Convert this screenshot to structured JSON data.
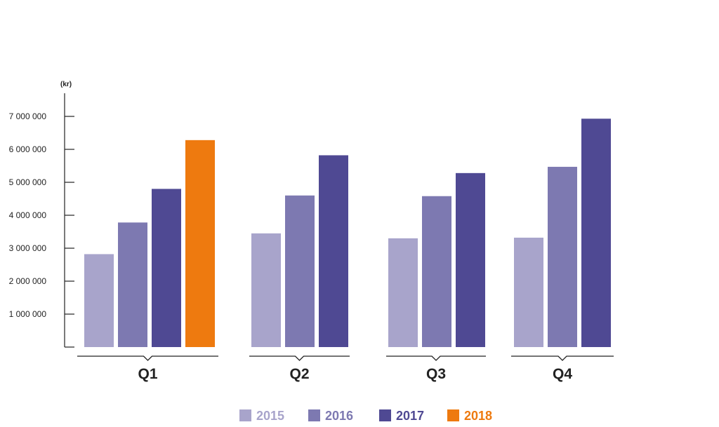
{
  "chart_data": {
    "type": "bar",
    "unit_label": "(kr)",
    "categories": [
      "Q1",
      "Q2",
      "Q3",
      "Q4"
    ],
    "series": [
      {
        "name": "2015",
        "color": "#a8a4cb",
        "values": [
          2820000,
          3450000,
          3300000,
          3320000
        ]
      },
      {
        "name": "2016",
        "color": "#7d79b1",
        "values": [
          3780000,
          4600000,
          4580000,
          5470000
        ]
      },
      {
        "name": "2017",
        "color": "#4f4993",
        "values": [
          4800000,
          5820000,
          5280000,
          6930000
        ]
      },
      {
        "name": "2018",
        "color": "#ee7a0f",
        "values": [
          6280000,
          null,
          null,
          null
        ]
      }
    ],
    "ylim": [
      0,
      7500000
    ],
    "yticks": [
      1000000,
      2000000,
      3000000,
      4000000,
      5000000,
      6000000,
      7000000
    ],
    "ytick_labels": [
      "1 000 000",
      "2 000 000",
      "3 000 000",
      "4 000 000",
      "5 000 000",
      "6 000 000",
      "7 000 000"
    ],
    "grid": false,
    "legend_position": "bottom-center"
  }
}
